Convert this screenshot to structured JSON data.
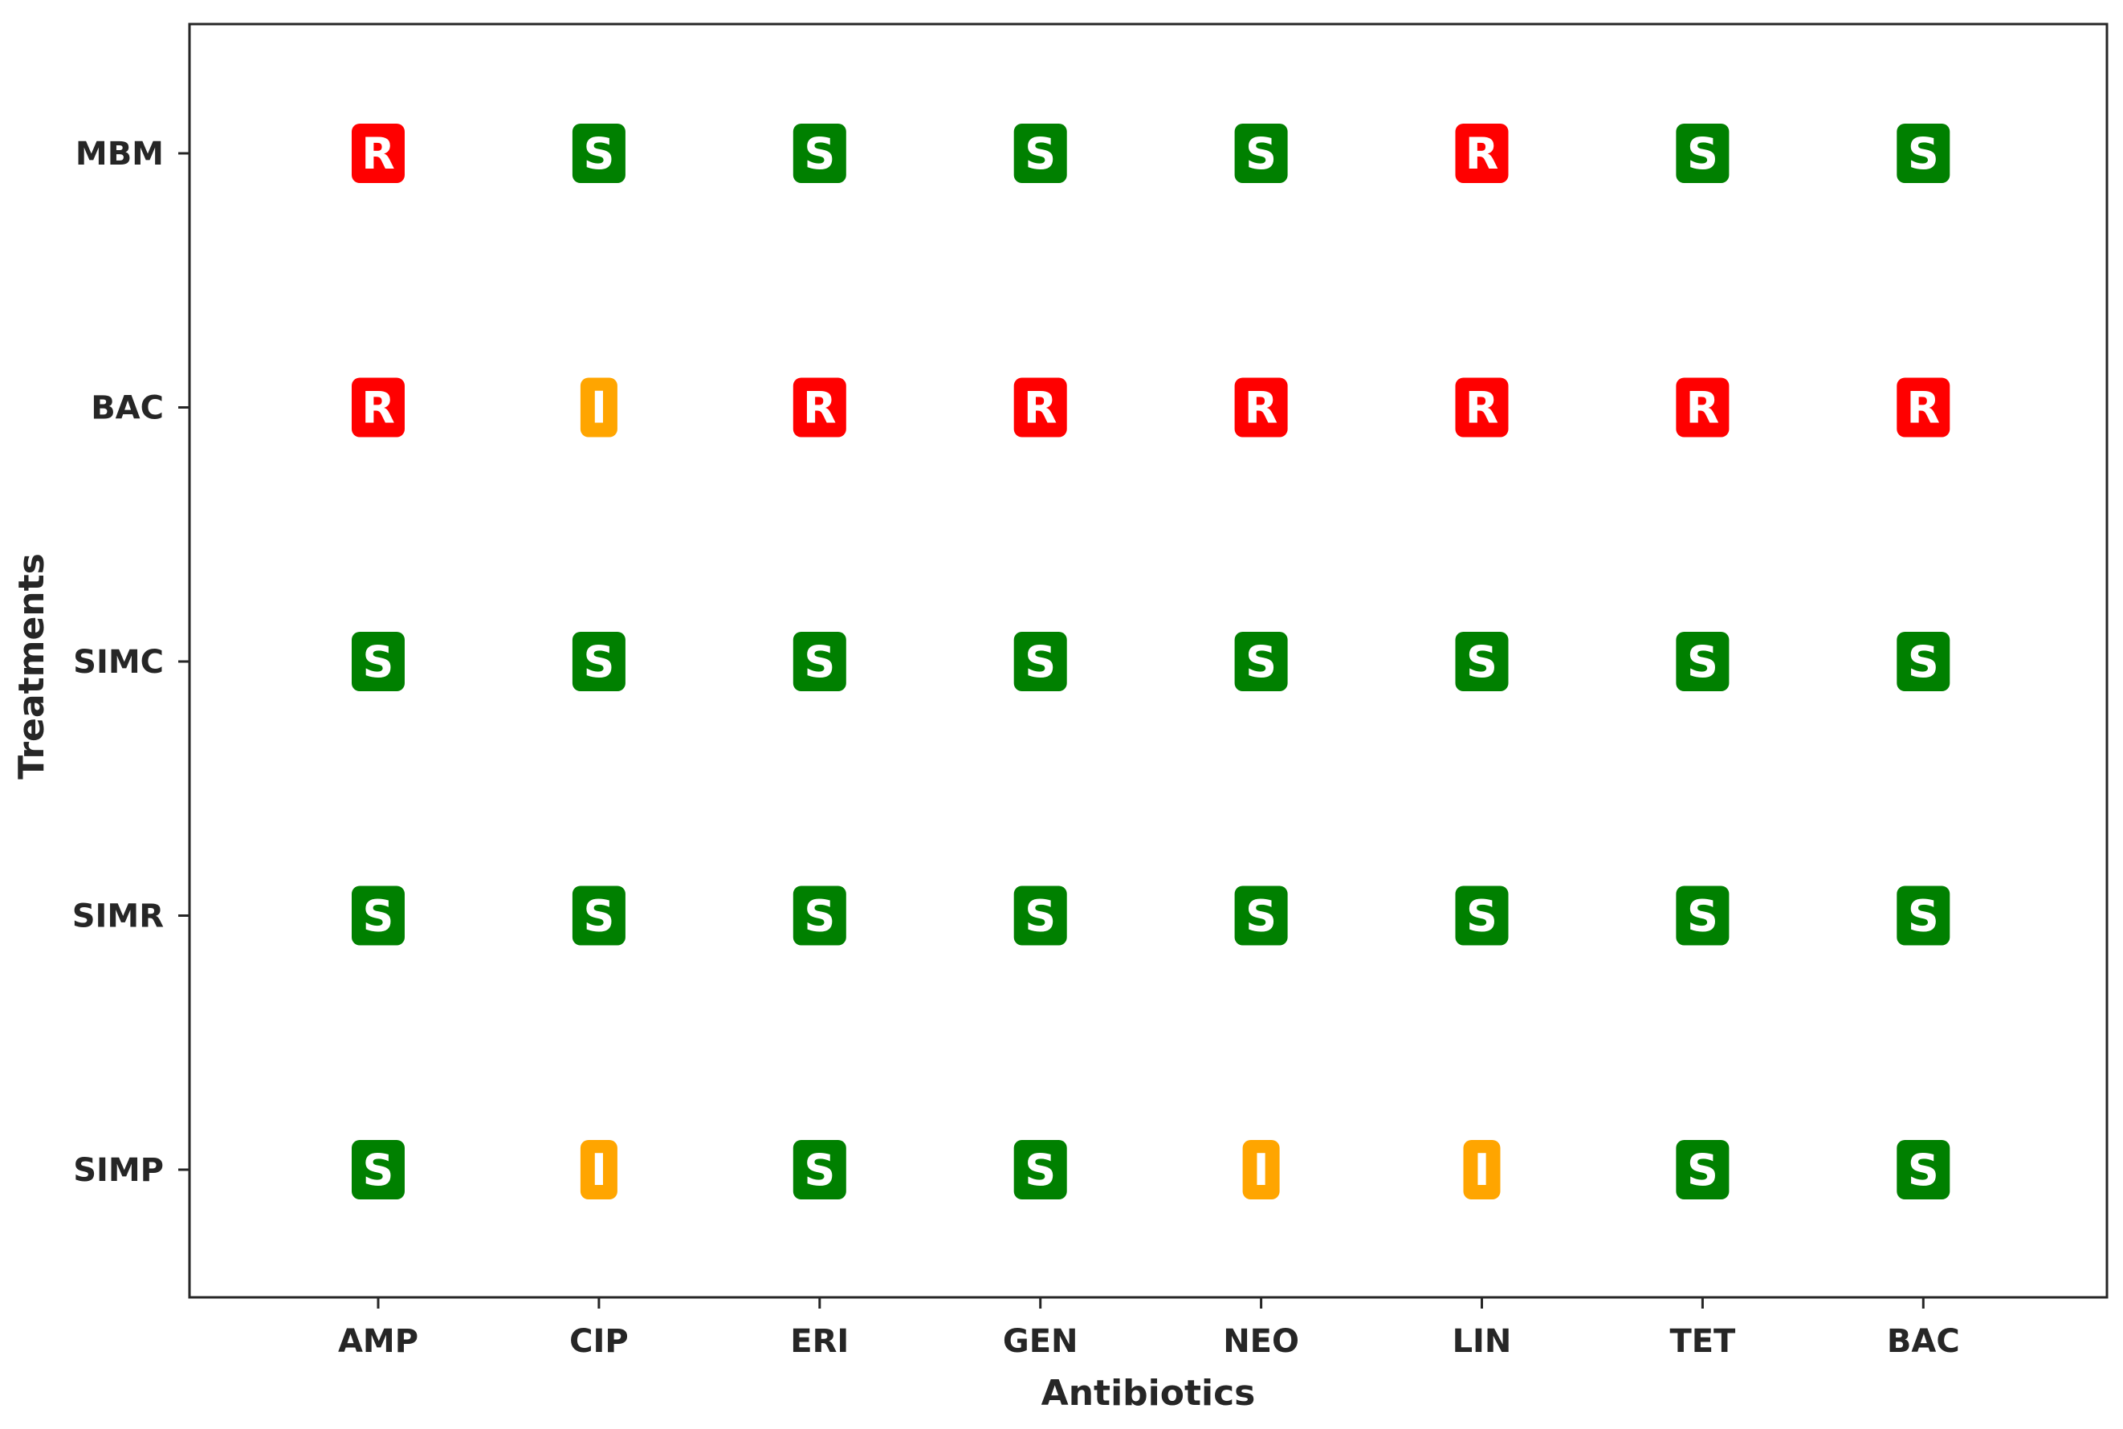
{
  "chart_data": {
    "type": "table",
    "title": "",
    "xlabel": "Antibiotics",
    "ylabel": "Treatments",
    "x_categories": [
      "AMP",
      "CIP",
      "ERI",
      "GEN",
      "NEO",
      "LIN",
      "TET",
      "BAC"
    ],
    "y_categories": [
      "MBM",
      "BAC",
      "SIMC",
      "SIMR",
      "SIMP"
    ],
    "values": [
      [
        "R",
        "S",
        "S",
        "S",
        "S",
        "R",
        "S",
        "S"
      ],
      [
        "R",
        "I",
        "R",
        "R",
        "R",
        "R",
        "R",
        "R"
      ],
      [
        "S",
        "S",
        "S",
        "S",
        "S",
        "S",
        "S",
        "S"
      ],
      [
        "S",
        "S",
        "S",
        "S",
        "S",
        "S",
        "S",
        "S"
      ],
      [
        "S",
        "I",
        "S",
        "S",
        "I",
        "I",
        "S",
        "S"
      ]
    ],
    "colors": {
      "S": "#008000",
      "R": "#ff0000",
      "I": "#ffa500"
    },
    "grid": false
  }
}
